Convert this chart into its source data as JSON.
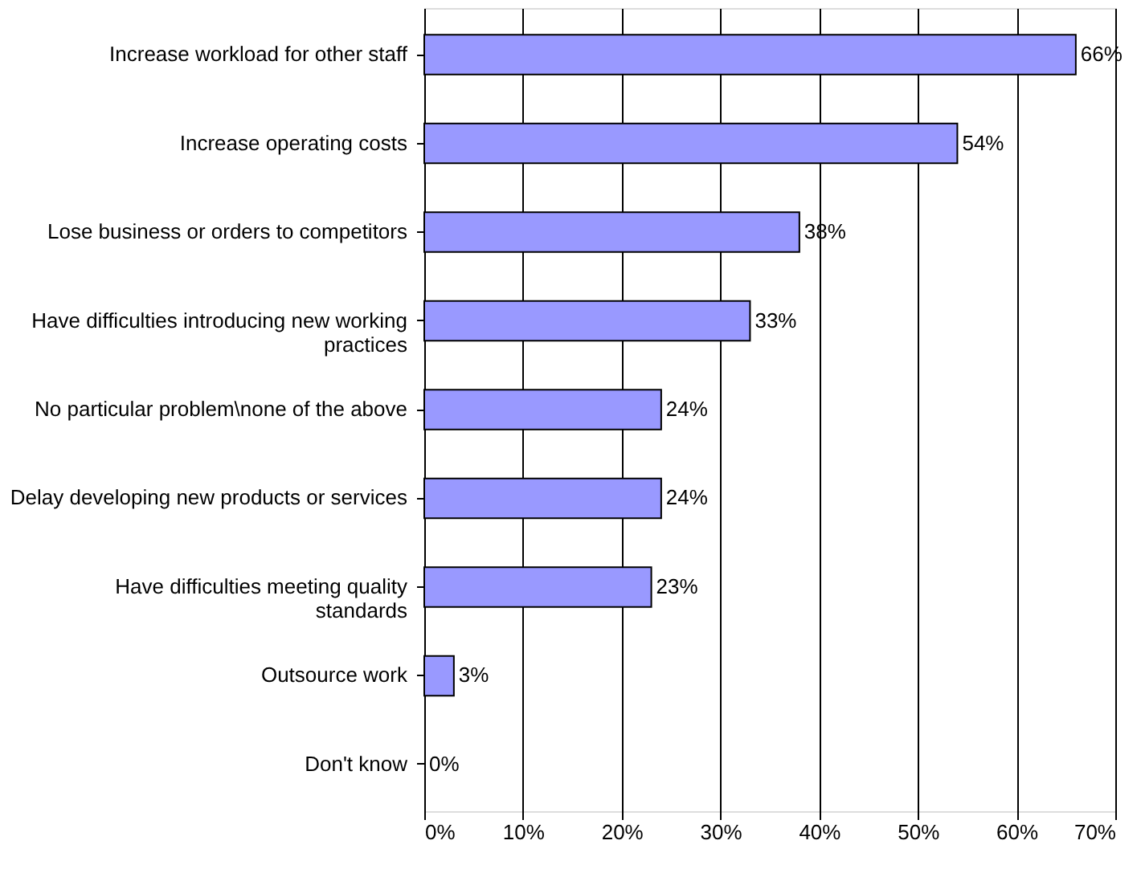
{
  "chart_data": {
    "type": "bar",
    "orientation": "horizontal",
    "categories": [
      "Increase workload for other staff",
      "Increase operating costs",
      "Lose business or orders to competitors",
      "Have difficulties introducing new working practices",
      "No particular problem\\none of the above",
      "Delay developing new products or services",
      "Have difficulties meeting quality standards",
      "Outsource work",
      "Don't know"
    ],
    "values": [
      66,
      54,
      38,
      33,
      24,
      24,
      23,
      3,
      0
    ],
    "value_labels": [
      "66%",
      "54%",
      "38%",
      "33%",
      "24%",
      "24%",
      "23%",
      "3%",
      "0%"
    ],
    "color": "#9999ff",
    "xlim": [
      0,
      70
    ],
    "xticks": [
      {
        "value": 0,
        "label": "0%"
      },
      {
        "value": 10,
        "label": "10%"
      },
      {
        "value": 20,
        "label": "20%"
      },
      {
        "value": 30,
        "label": "30%"
      },
      {
        "value": 40,
        "label": "40%"
      },
      {
        "value": 50,
        "label": "50%"
      },
      {
        "value": 60,
        "label": "60%"
      },
      {
        "value": 70,
        "label": "70%"
      }
    ],
    "grid": "x"
  }
}
